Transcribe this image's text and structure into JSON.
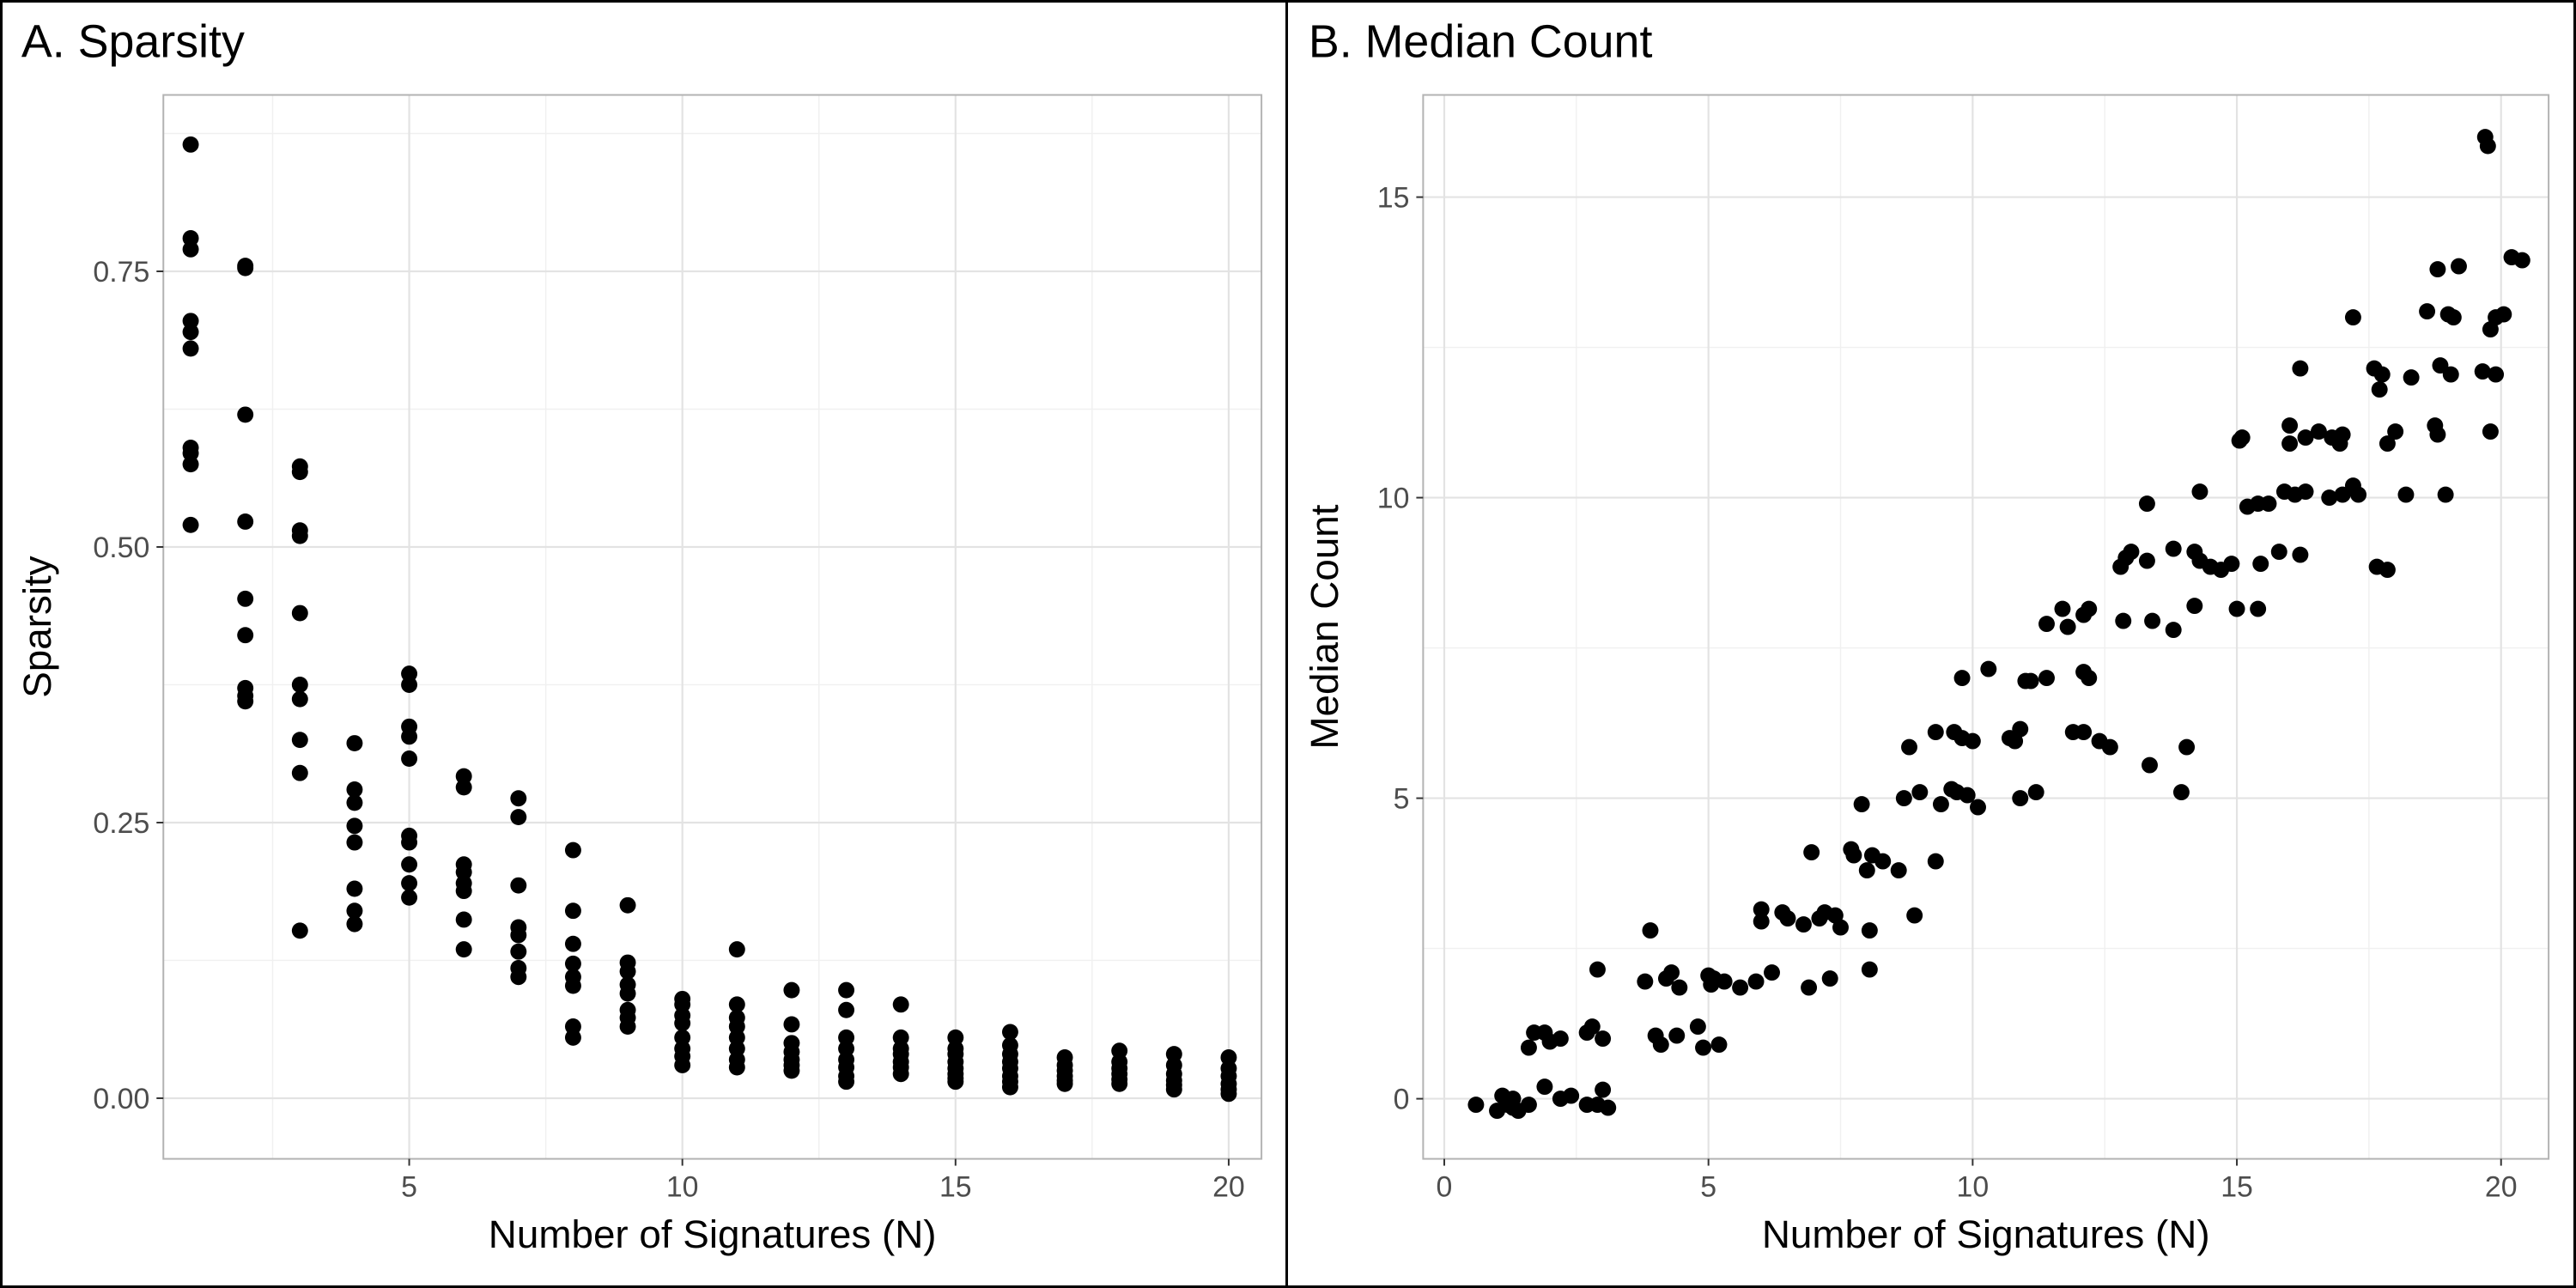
{
  "chart_data": [
    {
      "type": "scatter",
      "title": "A. Sparsity",
      "xlabel": "Number of Signatures (N)",
      "ylabel": "Sparsity",
      "xlim": [
        0.5,
        20.6
      ],
      "ylim": [
        -0.055,
        0.91
      ],
      "xticks": [
        5,
        10,
        15,
        20
      ],
      "xtick_labels": [
        "5",
        "10",
        "15",
        "20"
      ],
      "yticks": [
        0,
        0.25,
        0.5,
        0.75
      ],
      "ytick_labels": [
        "0.00",
        "0.25",
        "0.50",
        "0.75"
      ],
      "grid": true,
      "points": [
        [
          1,
          0.865
        ],
        [
          1,
          0.78
        ],
        [
          1,
          0.77
        ],
        [
          1,
          0.705
        ],
        [
          1,
          0.695
        ],
        [
          1,
          0.68
        ],
        [
          1,
          0.59
        ],
        [
          1,
          0.585
        ],
        [
          1,
          0.575
        ],
        [
          1,
          0.52
        ],
        [
          2,
          0.755
        ],
        [
          2,
          0.753
        ],
        [
          2,
          0.62
        ],
        [
          2,
          0.523
        ],
        [
          2,
          0.453
        ],
        [
          2,
          0.42
        ],
        [
          2,
          0.372
        ],
        [
          2,
          0.365
        ],
        [
          2,
          0.36
        ],
        [
          3,
          0.573
        ],
        [
          3,
          0.568
        ],
        [
          3,
          0.515
        ],
        [
          3,
          0.51
        ],
        [
          3,
          0.44
        ],
        [
          3,
          0.375
        ],
        [
          3,
          0.362
        ],
        [
          3,
          0.325
        ],
        [
          3,
          0.295
        ],
        [
          3,
          0.152
        ],
        [
          4,
          0.322
        ],
        [
          4,
          0.28
        ],
        [
          4,
          0.268
        ],
        [
          4,
          0.247
        ],
        [
          4,
          0.232
        ],
        [
          4,
          0.19
        ],
        [
          4,
          0.17
        ],
        [
          4,
          0.158
        ],
        [
          5,
          0.385
        ],
        [
          5,
          0.375
        ],
        [
          5,
          0.337
        ],
        [
          5,
          0.328
        ],
        [
          5,
          0.308
        ],
        [
          5,
          0.238
        ],
        [
          5,
          0.232
        ],
        [
          5,
          0.212
        ],
        [
          5,
          0.195
        ],
        [
          5,
          0.182
        ],
        [
          6,
          0.292
        ],
        [
          6,
          0.282
        ],
        [
          6,
          0.212
        ],
        [
          6,
          0.205
        ],
        [
          6,
          0.195
        ],
        [
          6,
          0.188
        ],
        [
          6,
          0.162
        ],
        [
          6,
          0.135
        ],
        [
          7,
          0.272
        ],
        [
          7,
          0.255
        ],
        [
          7,
          0.193
        ],
        [
          7,
          0.155
        ],
        [
          7,
          0.148
        ],
        [
          7,
          0.133
        ],
        [
          7,
          0.118
        ],
        [
          7,
          0.11
        ],
        [
          8,
          0.225
        ],
        [
          8,
          0.17
        ],
        [
          8,
          0.14
        ],
        [
          8,
          0.122
        ],
        [
          8,
          0.11
        ],
        [
          8,
          0.102
        ],
        [
          8,
          0.065
        ],
        [
          8,
          0.055
        ],
        [
          9,
          0.175
        ],
        [
          9,
          0.123
        ],
        [
          9,
          0.115
        ],
        [
          9,
          0.103
        ],
        [
          9,
          0.095
        ],
        [
          9,
          0.08
        ],
        [
          9,
          0.073
        ],
        [
          9,
          0.065
        ],
        [
          10,
          0.09
        ],
        [
          10,
          0.085
        ],
        [
          10,
          0.075
        ],
        [
          10,
          0.068
        ],
        [
          10,
          0.055
        ],
        [
          10,
          0.045
        ],
        [
          10,
          0.038
        ],
        [
          10,
          0.03
        ],
        [
          11,
          0.135
        ],
        [
          11,
          0.085
        ],
        [
          11,
          0.073
        ],
        [
          11,
          0.065
        ],
        [
          11,
          0.055
        ],
        [
          11,
          0.045
        ],
        [
          11,
          0.035
        ],
        [
          11,
          0.028
        ],
        [
          12,
          0.098
        ],
        [
          12,
          0.067
        ],
        [
          12,
          0.05
        ],
        [
          12,
          0.042
        ],
        [
          12,
          0.035
        ],
        [
          12,
          0.03
        ],
        [
          12,
          0.025
        ],
        [
          13,
          0.098
        ],
        [
          13,
          0.08
        ],
        [
          13,
          0.055
        ],
        [
          13,
          0.045
        ],
        [
          13,
          0.035
        ],
        [
          13,
          0.028
        ],
        [
          13,
          0.02
        ],
        [
          13,
          0.015
        ],
        [
          14,
          0.085
        ],
        [
          14,
          0.055
        ],
        [
          14,
          0.045
        ],
        [
          14,
          0.04
        ],
        [
          14,
          0.033
        ],
        [
          14,
          0.028
        ],
        [
          14,
          0.022
        ],
        [
          15,
          0.055
        ],
        [
          15,
          0.045
        ],
        [
          15,
          0.04
        ],
        [
          15,
          0.033
        ],
        [
          15,
          0.027
        ],
        [
          15,
          0.022
        ],
        [
          15,
          0.018
        ],
        [
          15,
          0.015
        ],
        [
          16,
          0.06
        ],
        [
          16,
          0.048
        ],
        [
          16,
          0.04
        ],
        [
          16,
          0.033
        ],
        [
          16,
          0.027
        ],
        [
          16,
          0.02
        ],
        [
          16,
          0.015
        ],
        [
          16,
          0.01
        ],
        [
          17,
          0.037
        ],
        [
          17,
          0.03
        ],
        [
          17,
          0.025
        ],
        [
          17,
          0.02
        ],
        [
          17,
          0.016
        ],
        [
          17,
          0.013
        ],
        [
          18,
          0.043
        ],
        [
          18,
          0.033
        ],
        [
          18,
          0.027
        ],
        [
          18,
          0.022
        ],
        [
          18,
          0.017
        ],
        [
          18,
          0.013
        ],
        [
          19,
          0.04
        ],
        [
          19,
          0.03
        ],
        [
          19,
          0.022
        ],
        [
          19,
          0.016
        ],
        [
          19,
          0.012
        ],
        [
          19,
          0.008
        ],
        [
          20,
          0.037
        ],
        [
          20,
          0.027
        ],
        [
          20,
          0.02
        ],
        [
          20,
          0.013
        ],
        [
          20,
          0.008
        ],
        [
          20,
          0.004
        ]
      ]
    },
    {
      "type": "scatter",
      "title": "B. Median Count",
      "xlabel": "Number of Signatures (N)",
      "ylabel": "Median Count",
      "xlim": [
        -0.4,
        20.9
      ],
      "ylim": [
        -1.0,
        16.7
      ],
      "xticks": [
        0,
        5,
        10,
        15,
        20
      ],
      "xtick_labels": [
        "0",
        "5",
        "10",
        "15",
        "20"
      ],
      "yticks": [
        0,
        5,
        10,
        15
      ],
      "ytick_labels": [
        "0",
        "5",
        "10",
        "15"
      ],
      "grid": true,
      "points": [
        [
          0.6,
          -0.1
        ],
        [
          1.0,
          -0.2
        ],
        [
          1.1,
          0.05
        ],
        [
          1.2,
          -0.1
        ],
        [
          1.3,
          0.0
        ],
        [
          1.3,
          -0.15
        ],
        [
          1.4,
          -0.2
        ],
        [
          1.6,
          -0.1
        ],
        [
          1.9,
          0.2
        ],
        [
          2.2,
          0.0
        ],
        [
          2.4,
          0.05
        ],
        [
          2.7,
          -0.1
        ],
        [
          2.9,
          -0.1
        ],
        [
          3.0,
          0.15
        ],
        [
          3.1,
          -0.15
        ],
        [
          1.6,
          0.85
        ],
        [
          1.7,
          1.1
        ],
        [
          1.9,
          1.1
        ],
        [
          2.0,
          0.95
        ],
        [
          2.2,
          1.0
        ],
        [
          2.7,
          1.1
        ],
        [
          2.8,
          1.2
        ],
        [
          3.0,
          1.0
        ],
        [
          2.9,
          2.15
        ],
        [
          3.8,
          1.95
        ],
        [
          3.9,
          2.8
        ],
        [
          4.0,
          1.05
        ],
        [
          4.1,
          0.9
        ],
        [
          4.2,
          2.0
        ],
        [
          4.3,
          2.1
        ],
        [
          4.4,
          1.05
        ],
        [
          4.45,
          1.85
        ],
        [
          4.8,
          1.2
        ],
        [
          4.9,
          0.85
        ],
        [
          5.0,
          2.05
        ],
        [
          5.05,
          1.9
        ],
        [
          5.1,
          2.0
        ],
        [
          5.2,
          0.9
        ],
        [
          5.3,
          1.95
        ],
        [
          5.6,
          1.85
        ],
        [
          5.9,
          1.95
        ],
        [
          6.0,
          2.95
        ],
        [
          6.0,
          3.15
        ],
        [
          6.2,
          2.1
        ],
        [
          6.4,
          3.1
        ],
        [
          6.5,
          3.0
        ],
        [
          6.8,
          2.9
        ],
        [
          6.9,
          1.85
        ],
        [
          6.95,
          4.1
        ],
        [
          7.1,
          3.0
        ],
        [
          7.2,
          3.1
        ],
        [
          7.3,
          2.0
        ],
        [
          7.4,
          3.05
        ],
        [
          7.5,
          2.85
        ],
        [
          7.7,
          4.15
        ],
        [
          7.75,
          4.05
        ],
        [
          7.9,
          4.9
        ],
        [
          8.0,
          3.8
        ],
        [
          8.05,
          2.8
        ],
        [
          8.05,
          2.15
        ],
        [
          8.1,
          4.05
        ],
        [
          8.3,
          3.95
        ],
        [
          8.6,
          3.8
        ],
        [
          8.7,
          5.0
        ],
        [
          8.8,
          5.85
        ],
        [
          8.9,
          3.05
        ],
        [
          9.0,
          5.1
        ],
        [
          9.3,
          3.95
        ],
        [
          9.3,
          6.1
        ],
        [
          9.4,
          4.9
        ],
        [
          9.6,
          5.15
        ],
        [
          9.65,
          6.1
        ],
        [
          9.7,
          5.1
        ],
        [
          9.8,
          6.0
        ],
        [
          9.8,
          7.0
        ],
        [
          9.9,
          5.05
        ],
        [
          10.0,
          5.95
        ],
        [
          10.1,
          4.85
        ],
        [
          10.3,
          7.15
        ],
        [
          10.7,
          6.0
        ],
        [
          10.8,
          5.95
        ],
        [
          10.9,
          6.15
        ],
        [
          10.9,
          5.0
        ],
        [
          11.0,
          6.95
        ],
        [
          11.1,
          6.95
        ],
        [
          11.2,
          5.1
        ],
        [
          11.4,
          7.0
        ],
        [
          11.4,
          7.9
        ],
        [
          11.7,
          8.15
        ],
        [
          11.8,
          7.85
        ],
        [
          11.9,
          6.1
        ],
        [
          12.1,
          6.1
        ],
        [
          12.1,
          8.05
        ],
        [
          12.1,
          7.1
        ],
        [
          12.2,
          8.15
        ],
        [
          12.2,
          7.0
        ],
        [
          12.4,
          5.95
        ],
        [
          12.6,
          5.85
        ],
        [
          12.8,
          8.85
        ],
        [
          12.85,
          7.95
        ],
        [
          12.9,
          9.0
        ],
        [
          13.0,
          9.1
        ],
        [
          13.3,
          9.9
        ],
        [
          13.3,
          8.95
        ],
        [
          13.35,
          5.55
        ],
        [
          13.4,
          7.95
        ],
        [
          13.8,
          9.15
        ],
        [
          13.8,
          7.8
        ],
        [
          13.95,
          5.1
        ],
        [
          14.05,
          5.85
        ],
        [
          14.2,
          9.1
        ],
        [
          14.2,
          8.2
        ],
        [
          14.3,
          10.1
        ],
        [
          14.3,
          8.95
        ],
        [
          14.5,
          8.85
        ],
        [
          14.7,
          8.8
        ],
        [
          14.9,
          8.9
        ],
        [
          15.0,
          8.15
        ],
        [
          15.05,
          10.95
        ],
        [
          15.1,
          11.0
        ],
        [
          15.2,
          9.85
        ],
        [
          15.4,
          9.9
        ],
        [
          15.4,
          8.15
        ],
        [
          15.45,
          8.9
        ],
        [
          15.6,
          9.9
        ],
        [
          15.8,
          9.1
        ],
        [
          15.9,
          10.1
        ],
        [
          16.0,
          11.2
        ],
        [
          16.0,
          10.9
        ],
        [
          16.1,
          10.05
        ],
        [
          16.2,
          12.15
        ],
        [
          16.2,
          9.05
        ],
        [
          16.3,
          11.0
        ],
        [
          16.3,
          10.1
        ],
        [
          16.55,
          11.1
        ],
        [
          16.75,
          10.0
        ],
        [
          16.8,
          11.0
        ],
        [
          16.95,
          10.9
        ],
        [
          17.0,
          10.05
        ],
        [
          17.0,
          11.05
        ],
        [
          17.2,
          13.0
        ],
        [
          17.2,
          10.2
        ],
        [
          17.3,
          10.05
        ],
        [
          17.6,
          12.15
        ],
        [
          17.65,
          8.85
        ],
        [
          17.7,
          11.8
        ],
        [
          17.75,
          12.05
        ],
        [
          17.85,
          8.8
        ],
        [
          17.85,
          10.9
        ],
        [
          18.0,
          11.1
        ],
        [
          18.2,
          10.05
        ],
        [
          18.3,
          12.0
        ],
        [
          18.6,
          13.1
        ],
        [
          18.75,
          11.2
        ],
        [
          18.8,
          11.05
        ],
        [
          18.8,
          13.8
        ],
        [
          18.85,
          12.2
        ],
        [
          18.95,
          10.05
        ],
        [
          19.0,
          13.05
        ],
        [
          19.05,
          12.05
        ],
        [
          19.1,
          13.0
        ],
        [
          19.2,
          13.85
        ],
        [
          19.65,
          12.1
        ],
        [
          19.7,
          16.0
        ],
        [
          19.75,
          15.85
        ],
        [
          19.8,
          11.1
        ],
        [
          19.8,
          12.8
        ],
        [
          19.9,
          13.0
        ],
        [
          19.9,
          12.05
        ],
        [
          20.05,
          13.05
        ],
        [
          20.2,
          14.0
        ],
        [
          20.4,
          13.95
        ]
      ]
    }
  ]
}
